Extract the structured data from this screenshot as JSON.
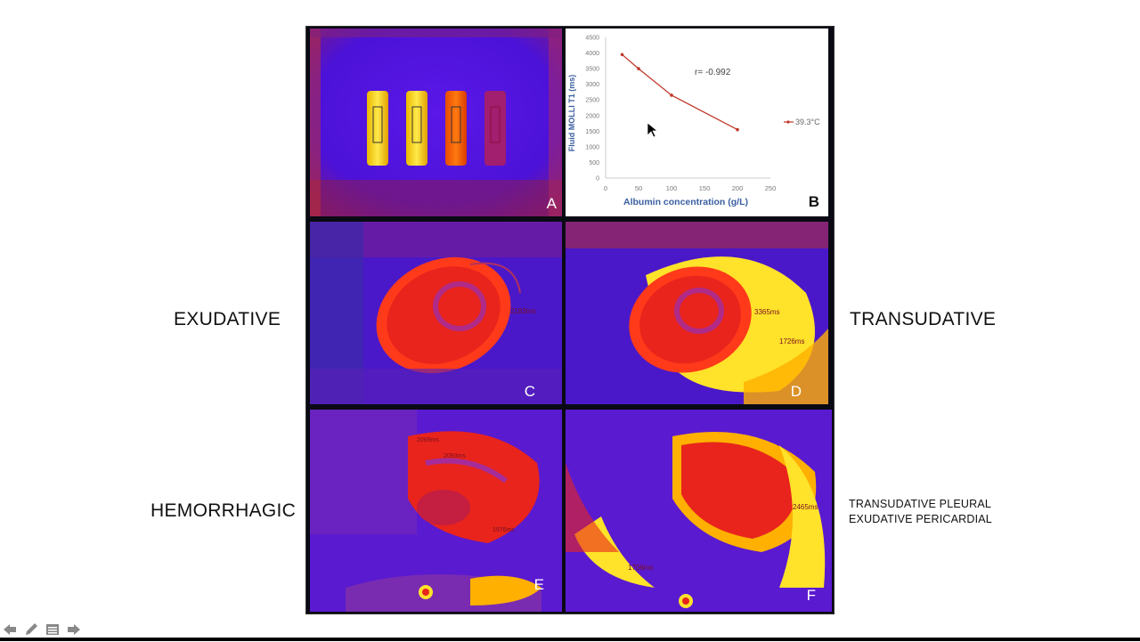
{
  "labels": {
    "exudative": "EXUDATIVE",
    "transudative": "TRANSUDATIVE",
    "hemorrhagic": "HEMORRHAGIC",
    "mixed_line1": "TRANSUDATIVE PLEURAL",
    "mixed_line2": "EXUDATIVE PERICARDIAL"
  },
  "panels": {
    "a": "A",
    "b": "B",
    "c": "C",
    "d": "D",
    "e": "E",
    "f": "F"
  },
  "annotations": {
    "c_value": "2183ms",
    "d_value1": "3365ms",
    "d_value2": "1726ms",
    "e_value1": "2069ms",
    "e_value2": "2093ms",
    "e_value3": "1976ms",
    "f_value1": "2465ms",
    "f_value2": "1706ms"
  },
  "chart_data": {
    "type": "line",
    "xlabel": "Albumin concentration (g/L)",
    "ylabel": "Fluid MOLLI T1 (ms)",
    "annotation": "r= -0.992",
    "xlim": [
      0,
      250
    ],
    "ylim": [
      0,
      4500
    ],
    "x_ticks": [
      "0",
      "50",
      "100",
      "150",
      "200",
      "250"
    ],
    "y_ticks": [
      "0",
      "500",
      "1000",
      "1500",
      "2000",
      "2500",
      "3000",
      "3500",
      "4000",
      "4500"
    ],
    "series": [
      {
        "name": "39.3°C",
        "color": "#c0392b",
        "x": [
          25,
          50,
          100,
          200
        ],
        "y": [
          3950,
          3500,
          2650,
          1550
        ]
      }
    ]
  },
  "colors": {
    "accent_red": "#c0392b",
    "nav_gray": "#888888"
  },
  "nav": {
    "icons": [
      "prev-arrow-icon",
      "pen-icon",
      "menu-icon",
      "next-arrow-icon"
    ]
  }
}
